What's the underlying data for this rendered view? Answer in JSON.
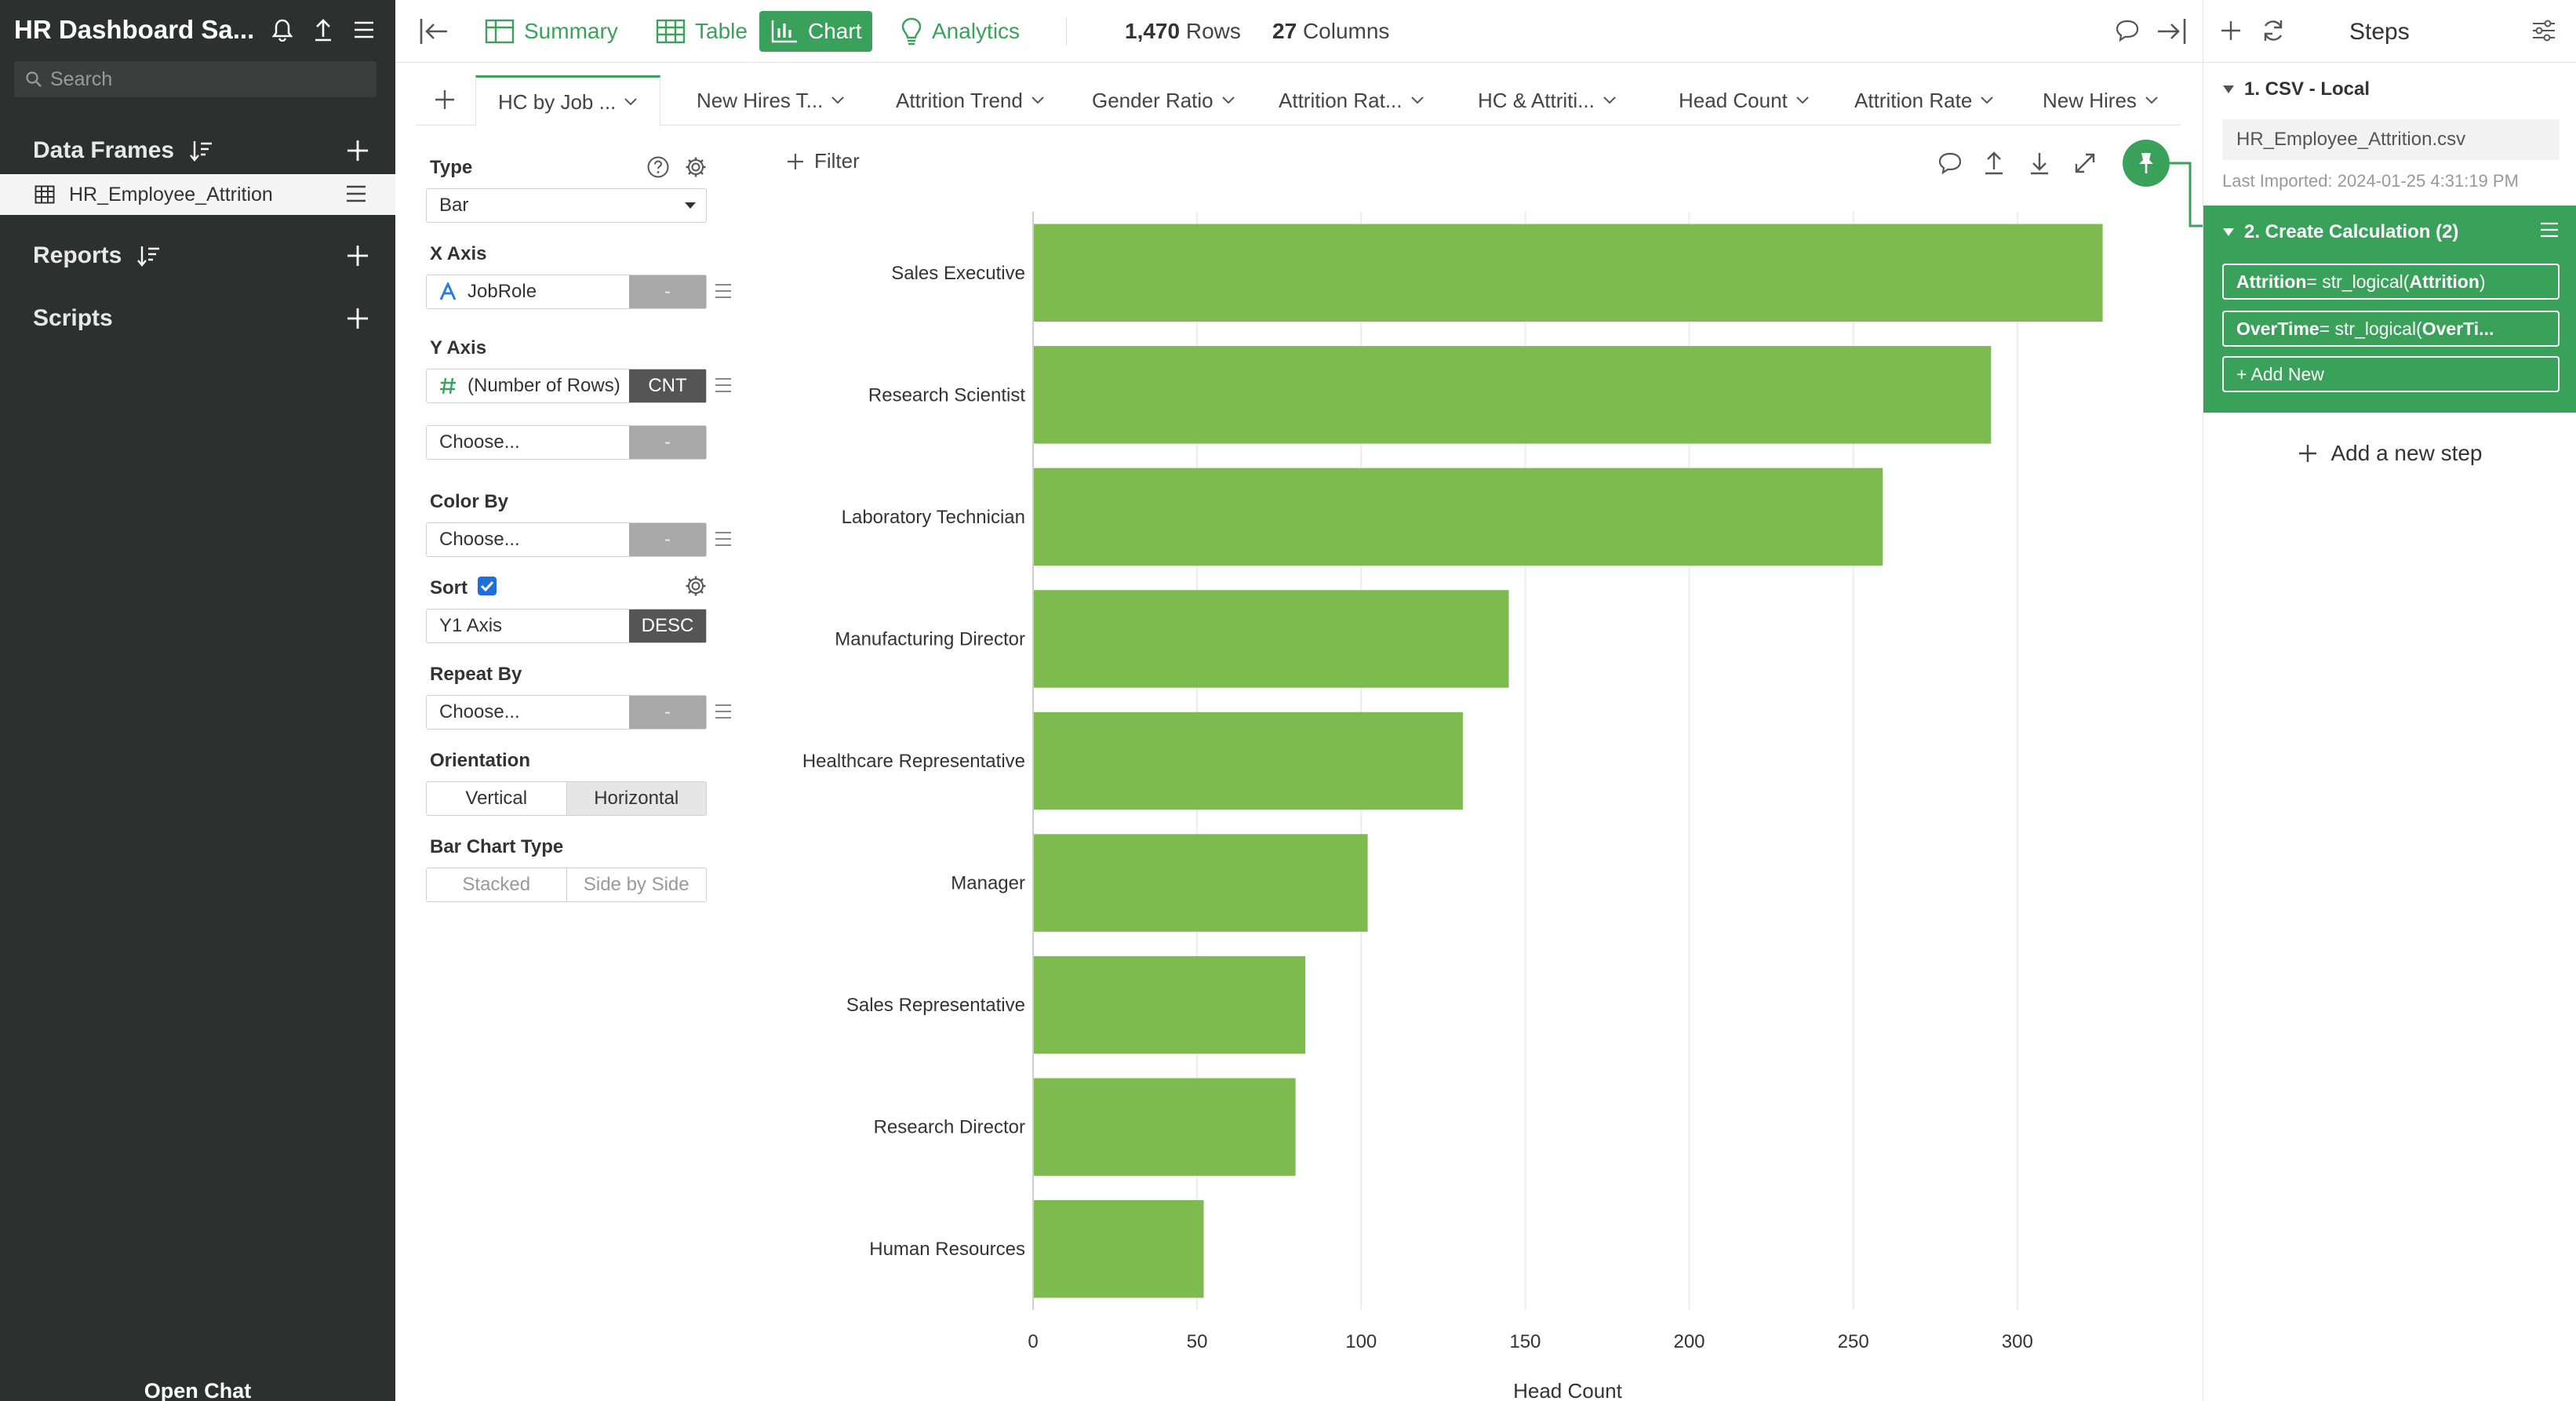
{
  "sidebar": {
    "title": "HR Dashboard Sa...",
    "search_placeholder": "Search",
    "data_frames_label": "Data Frames",
    "data_frame_item": "HR_Employee_Attrition",
    "reports_label": "Reports",
    "scripts_label": "Scripts",
    "open_chat": "Open Chat"
  },
  "toolbar": {
    "summary": "Summary",
    "table": "Table",
    "chart": "Chart",
    "analytics": "Analytics",
    "rows_value": "1,470",
    "rows_label": "Rows",
    "cols_value": "27",
    "cols_label": "Columns"
  },
  "tabs": [
    {
      "label": "HC by Job ..."
    },
    {
      "label": "New Hires T..."
    },
    {
      "label": "Attrition Trend"
    },
    {
      "label": "Gender Ratio"
    },
    {
      "label": "Attrition Rat..."
    },
    {
      "label": "HC & Attriti..."
    },
    {
      "label": "Head Count"
    },
    {
      "label": "Attrition Rate"
    },
    {
      "label": "New Hires"
    }
  ],
  "config": {
    "type_label": "Type",
    "type_value": "Bar",
    "x_axis_label": "X Axis",
    "x_axis_value": "JobRole",
    "x_axis_agg": "-",
    "y_axis_label": "Y Axis",
    "y_axis_value": "(Number of Rows)",
    "y_axis_agg": "CNT",
    "y2_value": "Choose...",
    "y2_agg": "-",
    "color_by_label": "Color By",
    "color_by_value": "Choose...",
    "color_by_agg": "-",
    "sort_label": "Sort",
    "sort_checked": true,
    "sort_value": "Y1 Axis",
    "sort_dir": "DESC",
    "repeat_by_label": "Repeat By",
    "repeat_by_value": "Choose...",
    "repeat_by_agg": "-",
    "orientation_label": "Orientation",
    "orientation_vertical": "Vertical",
    "orientation_horizontal": "Horizontal",
    "bar_type_label": "Bar Chart Type",
    "bar_type_stacked": "Stacked",
    "bar_type_side": "Side by Side"
  },
  "filter_label": "Filter",
  "chart_data": {
    "type": "bar",
    "orientation": "horizontal",
    "categories": [
      "Sales Executive",
      "Research Scientist",
      "Laboratory Technician",
      "Manufacturing Director",
      "Healthcare Representative",
      "Manager",
      "Sales Representative",
      "Research Director",
      "Human Resources"
    ],
    "values": [
      326,
      292,
      259,
      145,
      131,
      102,
      83,
      80,
      52
    ],
    "xlabel": "Head Count",
    "ylabel": "",
    "xlim": [
      0,
      345
    ],
    "xticks": [
      0,
      50,
      100,
      150,
      200,
      250,
      300
    ],
    "bar_color": "#7dbb51",
    "grid": true
  },
  "steps": {
    "title": "Steps",
    "step1_title": "1. CSV - Local",
    "step1_file": "HR_Employee_Attrition.csv",
    "step1_imported": "Last Imported: 2024-01-25 4:31:19 PM",
    "step2_title": "2. Create Calculation (2)",
    "calc1_name": "Attrition",
    "calc1_expr_pre": " = str_logical(",
    "calc1_expr_arg": "Attrition",
    "calc1_expr_post": ")",
    "calc2_name": "OverTime",
    "calc2_expr_pre": " = str_logical(",
    "calc2_expr_arg": "OverTi...",
    "add_new": "+ Add New",
    "add_step": "Add a new step"
  },
  "colors": {
    "accent": "#3aa15a",
    "bar": "#7dbb51",
    "sidebar_bg": "#2e2f2f"
  }
}
